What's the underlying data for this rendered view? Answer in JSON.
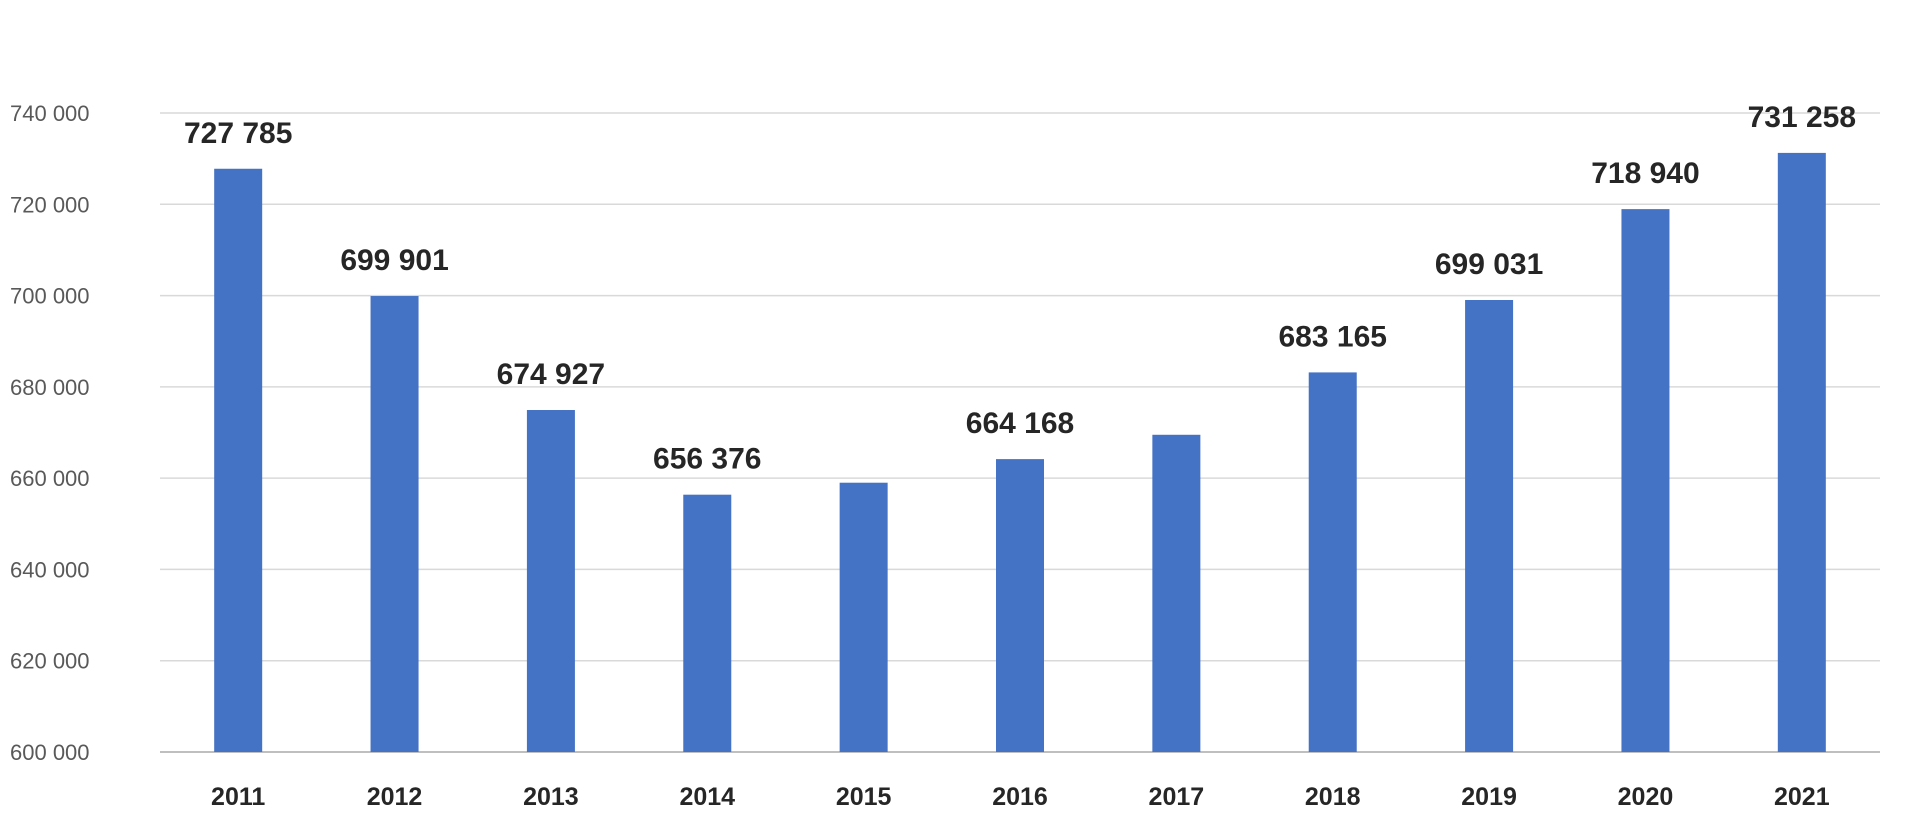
{
  "chart_data": {
    "type": "bar",
    "title": "",
    "xlabel": "",
    "ylabel": "",
    "categories": [
      "2011",
      "2012",
      "2013",
      "2014",
      "2015",
      "2016",
      "2017",
      "2018",
      "2019",
      "2020",
      "2021"
    ],
    "series": [
      {
        "values": [
          727785,
          699901,
          674927,
          656376,
          659000,
          664168,
          669500,
          683165,
          699031,
          718940,
          731258
        ],
        "color": "#4472c4"
      }
    ],
    "data_labels": [
      "727 785",
      "699 901",
      "674 927",
      "656 376",
      "",
      "664 168",
      "",
      "683 165",
      "699 031",
      "718 940",
      "731 258"
    ],
    "ylim": [
      600000,
      740000
    ],
    "yticks": [
      600000,
      620000,
      640000,
      660000,
      680000,
      700000,
      720000,
      740000
    ],
    "ytick_labels": [
      "600 000",
      "620 000",
      "640 000",
      "660 000",
      "680 000",
      "700 000",
      "720 000",
      "740 000"
    ],
    "grid": true,
    "legend": "none"
  }
}
